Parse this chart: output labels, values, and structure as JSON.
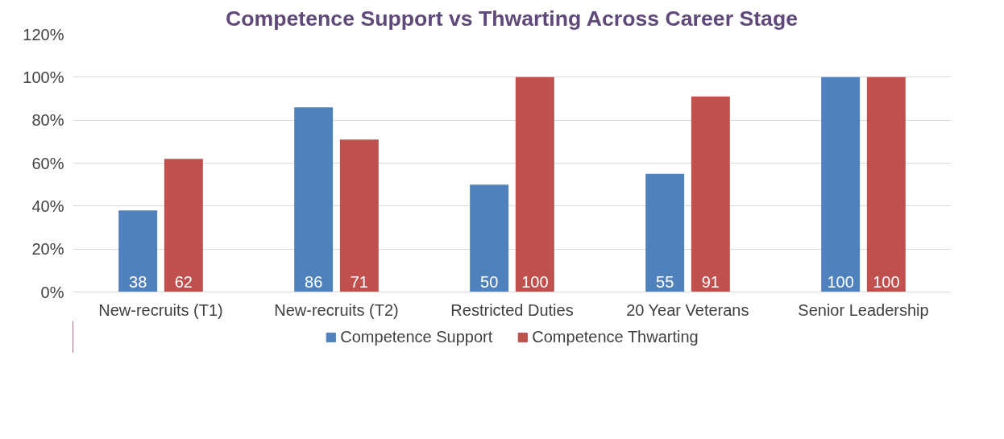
{
  "chart_data": {
    "type": "bar",
    "title": "Competence Support vs Thwarting Across Career Stage",
    "categories": [
      "New-recruits (T1)",
      "New-recruits (T2)",
      "Restricted Duties",
      "20 Year Veterans",
      "Senior Leadership"
    ],
    "series": [
      {
        "name": "Competence Support",
        "color": "#4f81bd",
        "values": [
          38,
          86,
          50,
          55,
          100
        ]
      },
      {
        "name": "Competence Thwarting",
        "color": "#c0504d",
        "values": [
          62,
          71,
          100,
          91,
          100
        ]
      }
    ],
    "ylim": [
      0,
      120
    ],
    "yticks": [
      {
        "value": 0,
        "label": "0%"
      },
      {
        "value": 20,
        "label": "20%"
      },
      {
        "value": 40,
        "label": "40%"
      },
      {
        "value": 60,
        "label": "60%"
      },
      {
        "value": 80,
        "label": "80%"
      },
      {
        "value": 100,
        "label": "100%"
      },
      {
        "value": 120,
        "label": "120%"
      }
    ],
    "grid": "y",
    "legend": "bottom",
    "data_labels": true
  }
}
